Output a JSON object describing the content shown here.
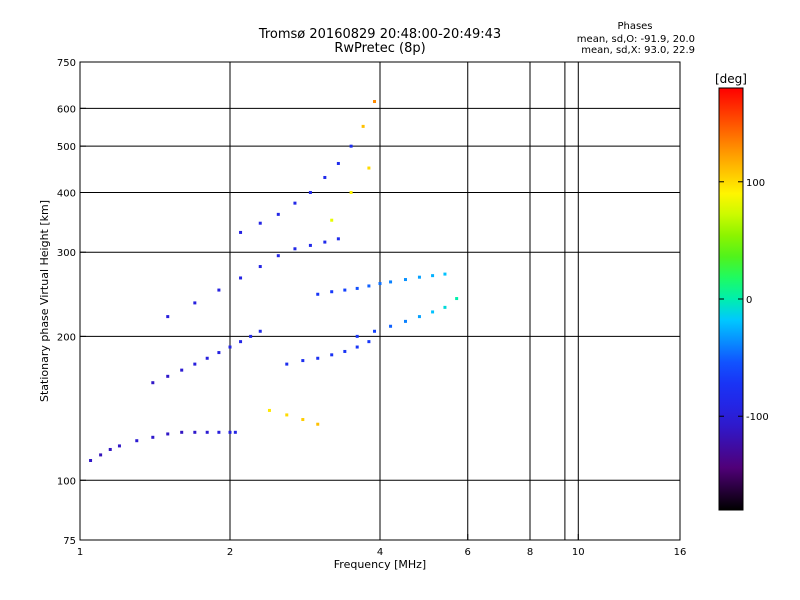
{
  "chart_data": {
    "type": "scatter",
    "title": "Tromsø 20160829 20:48:00-20:49:43",
    "subtitle": "RwPretec (8p)",
    "xlabel": "Frequency [MHz]",
    "ylabel": "Stationary phase Virtual Height [km]",
    "x_scale": "log",
    "y_scale": "log",
    "xlim": [
      1,
      16
    ],
    "ylim": [
      75,
      750
    ],
    "x_ticks": [
      1,
      2,
      4,
      6,
      8,
      10,
      16
    ],
    "y_ticks": [
      75,
      100,
      200,
      300,
      400,
      500,
      600,
      750
    ],
    "x_grid": [
      2,
      4,
      6,
      8,
      9.4,
      10
    ],
    "y_grid": [
      100,
      200,
      300,
      400,
      500,
      600
    ],
    "grid": true,
    "stats": {
      "heading": "Phases",
      "o_mode": "mean, sd,O: -91.9, 20.0",
      "x_mode": "mean, sd,X:  93.0, 22.9"
    },
    "colorbar": {
      "label": "[deg]",
      "range": [
        -180,
        180
      ],
      "ticks": [
        100,
        0,
        -100
      ],
      "tick_labels": [
        "100",
        "0",
        "-100"
      ]
    },
    "series": [
      {
        "x": [
          1.05,
          1.1,
          1.15,
          1.2,
          1.3,
          1.4,
          1.5,
          1.6,
          1.7,
          1.8,
          1.9,
          2.0,
          2.05,
          1.4,
          1.5,
          1.6,
          1.7,
          1.8,
          1.9,
          2.0,
          2.1,
          2.2,
          2.3,
          1.5,
          1.7,
          1.9,
          2.1,
          2.3,
          2.5,
          2.7,
          2.9,
          3.1,
          3.3,
          2.1,
          2.3,
          2.5,
          2.7,
          2.9,
          3.1,
          3.3,
          3.5,
          2.6,
          2.8,
          3.0,
          3.2,
          3.4,
          3.6,
          3.8,
          3.0,
          3.2,
          3.4,
          3.6,
          3.8,
          4.0,
          4.2,
          4.5,
          4.8,
          5.1,
          5.4,
          3.6,
          3.9,
          4.2,
          4.5,
          4.8,
          5.1,
          5.4,
          5.7,
          3.2,
          3.5,
          3.8,
          3.7,
          3.9,
          2.4,
          2.6,
          2.8,
          3.0
        ],
        "y": [
          110,
          113,
          116,
          118,
          121,
          123,
          125,
          126,
          126,
          126,
          126,
          126,
          126,
          160,
          165,
          170,
          175,
          180,
          185,
          190,
          195,
          200,
          205,
          220,
          235,
          250,
          265,
          280,
          295,
          305,
          310,
          315,
          320,
          330,
          345,
          360,
          380,
          400,
          430,
          460,
          500,
          175,
          178,
          180,
          183,
          186,
          190,
          195,
          245,
          248,
          250,
          252,
          255,
          258,
          260,
          263,
          266,
          268,
          270,
          200,
          205,
          210,
          215,
          220,
          225,
          230,
          240,
          350,
          400,
          450,
          550,
          620,
          140,
          137,
          134,
          131
        ],
        "phase": [
          -110,
          -115,
          -112,
          -110,
          -105,
          -108,
          -110,
          -112,
          -108,
          -105,
          -100,
          -95,
          -92,
          -110,
          -108,
          -105,
          -100,
          -98,
          -95,
          -92,
          -90,
          -88,
          -85,
          -100,
          -98,
          -96,
          -94,
          -92,
          -90,
          -88,
          -86,
          -84,
          -82,
          -95,
          -92,
          -90,
          -88,
          -86,
          -84,
          -82,
          -80,
          -80,
          -78,
          -76,
          -74,
          -72,
          -70,
          -68,
          -70,
          -65,
          -60,
          -55,
          -50,
          -45,
          -40,
          -35,
          -30,
          -25,
          -20,
          -70,
          -60,
          -50,
          -40,
          -30,
          -20,
          -10,
          0,
          80,
          90,
          100,
          110,
          130,
          95,
          100,
          105,
          110
        ]
      }
    ]
  }
}
